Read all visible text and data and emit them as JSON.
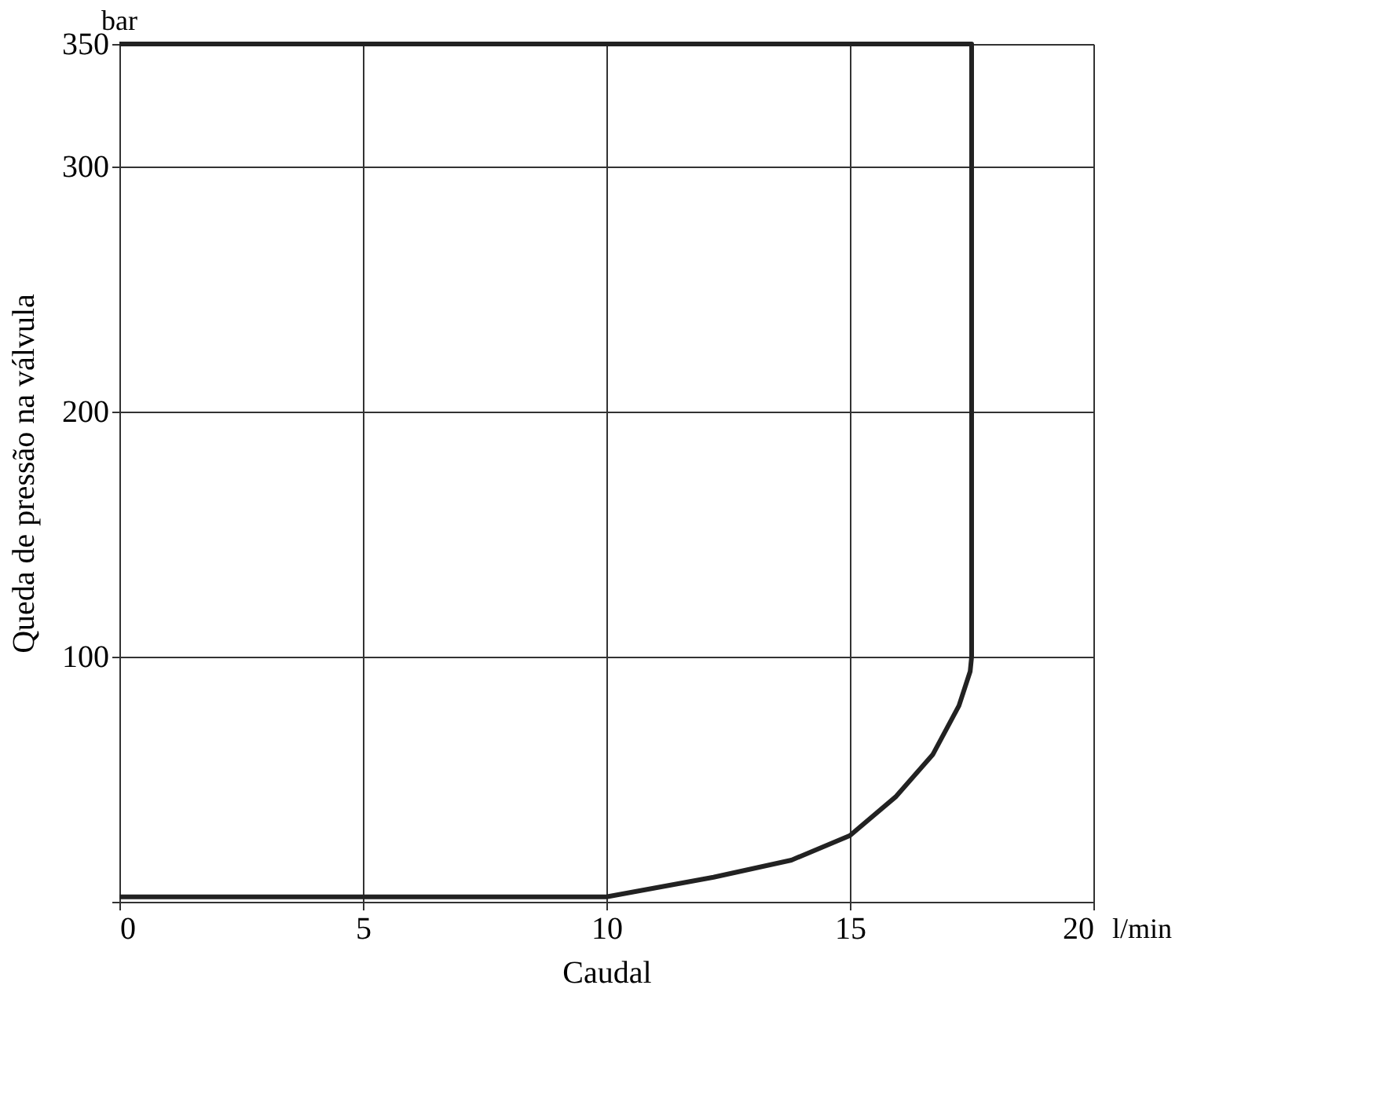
{
  "chart_data": {
    "type": "line",
    "x": [
      0,
      8,
      10,
      12.2,
      13.8,
      15,
      15.95,
      16.7,
      17.24,
      17.47,
      17.5,
      17.5,
      0
    ],
    "series": [
      {
        "color": "#222222",
        "values": [
          2,
          2,
          2,
          10,
          17,
          27,
          43,
          60,
          80,
          94,
          100,
          350,
          350
        ]
      }
    ],
    "xlabel": "Caudal",
    "ylabel": "Queda de pressão na válvula",
    "annotations": [
      "bar",
      "l/min"
    ],
    "xlim": [
      0,
      20
    ],
    "xticks": [
      0,
      5,
      10,
      15,
      20
    ],
    "ylim": [
      0,
      350
    ],
    "yticks": [
      {
        "value": 0,
        "label": null
      },
      100,
      200,
      300,
      350
    ],
    "grid": true,
    "legend": false,
    "marker": "none",
    "line_style": "solid"
  }
}
